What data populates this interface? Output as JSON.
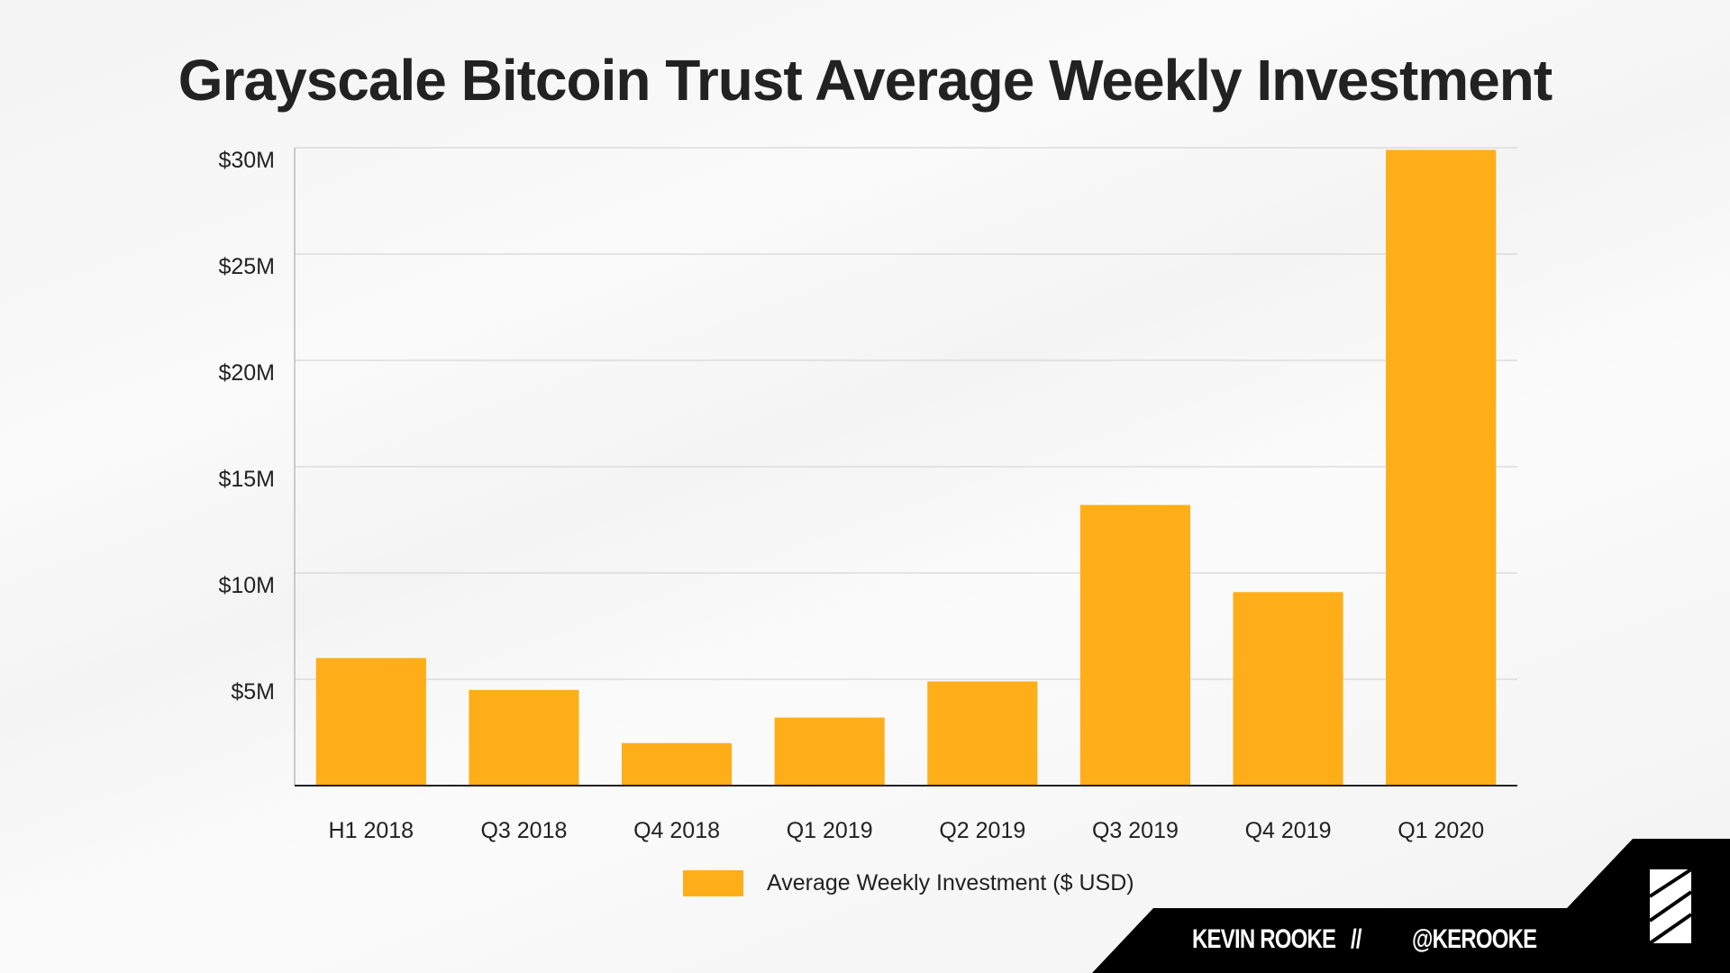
{
  "chart_data": {
    "type": "bar",
    "title": "Grayscale Bitcoin Trust Average Weekly Investment",
    "categories": [
      "H1 2018",
      "Q3 2018",
      "Q4 2018",
      "Q1 2019",
      "Q2 2019",
      "Q3 2019",
      "Q4 2019",
      "Q1 2020"
    ],
    "series": [
      {
        "name": "Average Weekly Investment ($ USD)",
        "values": [
          6.0,
          4.5,
          2.0,
          3.2,
          4.9,
          13.2,
          9.1,
          29.9
        ],
        "color": "#fdae19"
      }
    ],
    "unit": "million USD",
    "ylim": [
      0,
      30
    ],
    "yticks": [
      5,
      10,
      15,
      20,
      25,
      30
    ],
    "ytick_labels": [
      "$5M",
      "$10M",
      "$15M",
      "$20M",
      "$25M",
      "$30M"
    ],
    "grid": true,
    "legend": "bottom"
  },
  "footer": {
    "author": "KEVIN ROOKE",
    "separator": "//",
    "handle": "@KEROOKE",
    "logo": "striped-square-logo"
  }
}
